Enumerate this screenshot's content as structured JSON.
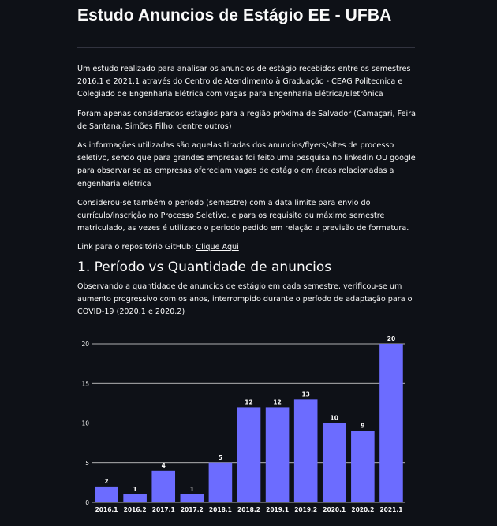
{
  "page": {
    "title": "Estudo Anuncios de Estágio EE - UFBA",
    "paragraphs": [
      "Um estudo realizado para analisar os anuncios de estágio recebidos entre os semestres 2016.1 e 2021.1 através do Centro de Atendimento à Graduação - CEAG Politecnica e Colegiado de Engenharia Elétrica com vagas para Engenharia Elétrica/Eletrônica",
      "Foram apenas considerados estágios para a região próxima de Salvador (Camaçari, Feira de Santana, Simões Filho, dentre outros)",
      "As informações utilizadas são aquelas tiradas dos anuncios/flyers/sites de processo seletivo, sendo que para grandes empresas foi feito uma pesquisa no linkedin OU google para observar se as empresas ofereciam vagas de estágio em áreas relacionadas a engenharia elétrica",
      "Considerou-se também o período (semestre) com a data limite para envio do currículo/inscrição no Processo Seletivo, e para os requisito ou máximo semestre matriculado, as vezes é utilizado o periodo pedido em relação a previsão de formatura."
    ],
    "repo_prefix": "Link para o repositório GitHub: ",
    "repo_link_label": "Clique Aqui",
    "section1_title": "1. Período vs Quantidade de anuncios",
    "section1_desc": "Observando a quantidade de anuncios de estágio em cada semestre, verificou-se um aumento progressivo com os anos, interrompido durante o período de adaptação para o COVID-19 (2020.1 e 2020.2)"
  },
  "colors": {
    "background": "#0e1117",
    "bar": "#6c6cff",
    "grid": "#e6e6e6",
    "text": "#fafafa"
  },
  "chart_data": {
    "type": "bar",
    "categories": [
      "2016.1",
      "2016.2",
      "2017.1",
      "2017.2",
      "2018.1",
      "2018.2",
      "2019.1",
      "2019.2",
      "2020.1",
      "2020.2",
      "2021.1"
    ],
    "values": [
      2,
      1,
      4,
      1,
      5,
      12,
      12,
      13,
      10,
      9,
      20
    ],
    "ylim": [
      0,
      20
    ],
    "yticks": [
      0,
      5,
      10,
      15,
      20
    ],
    "grid": true,
    "data_labels": true
  }
}
